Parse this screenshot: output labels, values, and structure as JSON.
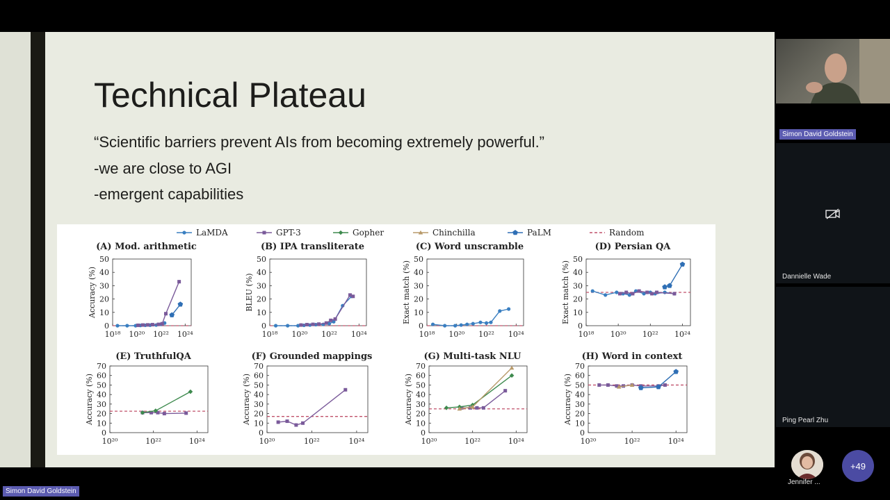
{
  "slide": {
    "title": "Technical Plateau",
    "bullets": [
      "“Scientific barriers prevent AIs from becoming extremely powerful.”",
      "-we are close to AGI",
      "-emergent capabilities"
    ]
  },
  "chart_data": {
    "type": "line",
    "legend": [
      {
        "name": "LaMDA",
        "color": "#3a7fc1",
        "marker": "circle"
      },
      {
        "name": "GPT-3",
        "color": "#7a5a9a",
        "marker": "square"
      },
      {
        "name": "Gopher",
        "color": "#3e8a4e",
        "marker": "diamond"
      },
      {
        "name": "Chinchilla",
        "color": "#b89a6a",
        "marker": "triangle"
      },
      {
        "name": "PaLM",
        "color": "#2f6fb5",
        "marker": "pentagon"
      },
      {
        "name": "Random",
        "color": "#c0506a",
        "marker": "dashed"
      }
    ],
    "panels": [
      {
        "title": "(A) Mod. arithmetic",
        "ylabel": "Accuracy (%)",
        "ylim": [
          0,
          50
        ],
        "yticks": [
          "0",
          "10",
          "20",
          "30",
          "40",
          "50"
        ],
        "xticks": [
          "10¹⁸",
          "10²⁰",
          "10²²",
          "10²⁴"
        ],
        "xlim": [
          18,
          24.5
        ],
        "random": 0,
        "series": [
          {
            "name": "LaMDA",
            "points": [
              [
                18.4,
                0
              ],
              [
                19.2,
                0
              ],
              [
                19.9,
                0
              ],
              [
                20.3,
                0.2
              ],
              [
                20.7,
                0.3
              ],
              [
                21.1,
                0.4
              ],
              [
                21.6,
                0.5
              ],
              [
                22.0,
                1
              ],
              [
                22.3,
                2
              ]
            ]
          },
          {
            "name": "GPT-3",
            "points": [
              [
                20.1,
                0.3
              ],
              [
                20.5,
                0.5
              ],
              [
                20.9,
                0.6
              ],
              [
                21.3,
                0.8
              ],
              [
                21.8,
                1
              ],
              [
                22.1,
                1.5
              ],
              [
                22.4,
                9
              ],
              [
                23.5,
                33
              ]
            ]
          },
          {
            "name": "PaLM",
            "points": [
              [
                22.9,
                8
              ],
              [
                23.6,
                16
              ]
            ]
          }
        ]
      },
      {
        "title": "(B) IPA transliterate",
        "ylabel": "BLEU (%)",
        "ylim": [
          0,
          50
        ],
        "yticks": [
          "0",
          "10",
          "20",
          "30",
          "40",
          "50"
        ],
        "xticks": [
          "10¹⁸",
          "10²⁰",
          "10²²",
          "10²⁴"
        ],
        "xlim": [
          18,
          24.5
        ],
        "random": 0,
        "series": [
          {
            "name": "LaMDA",
            "points": [
              [
                18.4,
                0
              ],
              [
                19.2,
                0
              ],
              [
                19.9,
                0
              ],
              [
                20.3,
                0.3
              ],
              [
                20.7,
                0.5
              ],
              [
                21.1,
                0.8
              ],
              [
                21.6,
                1
              ],
              [
                22.0,
                1.5
              ],
              [
                22.3,
                3
              ],
              [
                22.9,
                15
              ],
              [
                23.5,
                22
              ]
            ]
          },
          {
            "name": "GPT-3",
            "points": [
              [
                20.1,
                0.5
              ],
              [
                20.5,
                0.8
              ],
              [
                20.9,
                1
              ],
              [
                21.3,
                1.2
              ],
              [
                21.8,
                2
              ],
              [
                22.1,
                4
              ],
              [
                22.4,
                5
              ],
              [
                23.4,
                23
              ],
              [
                23.6,
                22
              ]
            ]
          }
        ]
      },
      {
        "title": "(C) Word unscramble",
        "ylabel": "Exact match (%)",
        "ylim": [
          0,
          50
        ],
        "yticks": [
          "0",
          "10",
          "20",
          "30",
          "40",
          "50"
        ],
        "xticks": [
          "10¹⁸",
          "10²⁰",
          "10²²",
          "10²⁴"
        ],
        "xlim": [
          18,
          24.5
        ],
        "random": 0,
        "series": [
          {
            "name": "LaMDA",
            "points": [
              [
                18.4,
                1
              ],
              [
                19.2,
                0
              ],
              [
                19.9,
                0
              ],
              [
                20.3,
                0.5
              ],
              [
                20.7,
                1
              ],
              [
                21.1,
                1.5
              ],
              [
                21.6,
                2.5
              ],
              [
                22.0,
                2
              ],
              [
                22.3,
                2.5
              ],
              [
                22.9,
                11
              ],
              [
                23.5,
                12.5
              ]
            ]
          }
        ]
      },
      {
        "title": "(D) Persian QA",
        "ylabel": "Exact match (%)",
        "ylim": [
          0,
          50
        ],
        "yticks": [
          "0",
          "10",
          "20",
          "30",
          "40",
          "50"
        ],
        "xticks": [
          "10¹⁸",
          "10²⁰",
          "10²²",
          "10²⁴"
        ],
        "xlim": [
          18,
          24.5
        ],
        "random": 25,
        "series": [
          {
            "name": "LaMDA",
            "points": [
              [
                18.4,
                26
              ],
              [
                19.2,
                23
              ],
              [
                19.9,
                25
              ],
              [
                20.3,
                24
              ],
              [
                20.7,
                23
              ],
              [
                21.1,
                26
              ],
              [
                21.6,
                24
              ],
              [
                22.0,
                25
              ],
              [
                22.3,
                24
              ],
              [
                22.9,
                25
              ],
              [
                23.5,
                24
              ]
            ]
          },
          {
            "name": "GPT-3",
            "points": [
              [
                20.1,
                24
              ],
              [
                20.5,
                25
              ],
              [
                20.9,
                24
              ],
              [
                21.3,
                26
              ],
              [
                21.8,
                25
              ],
              [
                22.1,
                24
              ],
              [
                22.4,
                25
              ],
              [
                23.5,
                24
              ]
            ]
          },
          {
            "name": "PaLM",
            "points": [
              [
                22.9,
                29
              ],
              [
                23.2,
                30
              ],
              [
                24.0,
                46
              ]
            ]
          }
        ]
      },
      {
        "title": "(E) TruthfulQA",
        "ylabel": "Accuracy (%)",
        "ylim": [
          0,
          70
        ],
        "yticks": [
          "0",
          "10",
          "20",
          "30",
          "40",
          "50",
          "60",
          "70"
        ],
        "xticks": [
          "10²⁰",
          "10²²",
          "10²⁴"
        ],
        "xlim": [
          20,
          24.5
        ],
        "random": 22.5,
        "series": [
          {
            "name": "GPT-3",
            "points": [
              [
                21.5,
                21
              ],
              [
                21.9,
                21
              ],
              [
                22.2,
                21
              ],
              [
                22.5,
                20
              ],
              [
                23.5,
                20.5
              ]
            ]
          },
          {
            "name": "Gopher",
            "points": [
              [
                21.5,
                21
              ],
              [
                22.1,
                23
              ],
              [
                23.7,
                43
              ]
            ]
          }
        ]
      },
      {
        "title": "(F) Grounded mappings",
        "ylabel": "Accuracy (%)",
        "ylim": [
          0,
          70
        ],
        "yticks": [
          "0",
          "10",
          "20",
          "30",
          "40",
          "50",
          "60",
          "70"
        ],
        "xticks": [
          "10²⁰",
          "10²²",
          "10²⁴"
        ],
        "xlim": [
          20,
          24.5
        ],
        "random": 17,
        "series": [
          {
            "name": "GPT-3",
            "points": [
              [
                20.5,
                11
              ],
              [
                20.9,
                12
              ],
              [
                21.3,
                8
              ],
              [
                21.6,
                10
              ],
              [
                23.5,
                45
              ]
            ]
          }
        ]
      },
      {
        "title": "(G) Multi-task NLU",
        "ylabel": "Accuracy (%)",
        "ylim": [
          0,
          70
        ],
        "yticks": [
          "0",
          "10",
          "20",
          "30",
          "40",
          "50",
          "60",
          "70"
        ],
        "xticks": [
          "10²⁰",
          "10²²",
          "10²⁴"
        ],
        "xlim": [
          20,
          24.5
        ],
        "random": 25,
        "series": [
          {
            "name": "GPT-3",
            "points": [
              [
                21.5,
                26
              ],
              [
                21.9,
                26
              ],
              [
                22.2,
                26
              ],
              [
                22.5,
                26
              ],
              [
                23.5,
                44
              ]
            ]
          },
          {
            "name": "Gopher",
            "points": [
              [
                20.8,
                26
              ],
              [
                21.4,
                27
              ],
              [
                22.0,
                29
              ],
              [
                23.8,
                60
              ]
            ]
          },
          {
            "name": "Chinchilla",
            "points": [
              [
                21.4,
                25
              ],
              [
                22.0,
                27
              ],
              [
                23.8,
                68
              ]
            ]
          }
        ]
      },
      {
        "title": "(H) Word in context",
        "ylabel": "Accuracy (%)",
        "ylim": [
          0,
          70
        ],
        "yticks": [
          "0",
          "10",
          "20",
          "30",
          "40",
          "50",
          "60",
          "70"
        ],
        "xticks": [
          "10²⁰",
          "10²²",
          "10²⁴"
        ],
        "xlim": [
          20,
          24.5
        ],
        "random": 50,
        "series": [
          {
            "name": "GPT-3",
            "points": [
              [
                20.5,
                50
              ],
              [
                20.9,
                50
              ],
              [
                21.3,
                49
              ],
              [
                21.6,
                49
              ],
              [
                22.0,
                50
              ],
              [
                22.4,
                49
              ],
              [
                23.2,
                49
              ],
              [
                23.5,
                50
              ]
            ]
          },
          {
            "name": "Chinchilla",
            "points": [
              [
                21.4,
                48
              ],
              [
                22.0,
                50
              ]
            ]
          },
          {
            "name": "PaLM",
            "points": [
              [
                22.4,
                47
              ],
              [
                23.2,
                48
              ],
              [
                24.0,
                64
              ]
            ]
          }
        ]
      }
    ]
  },
  "participants": {
    "speaker": "Simon David Goldstein",
    "tiles": [
      "Dannielle Wade",
      "Ping Pearl Zhu"
    ],
    "avatar_name": "Jennifer ...",
    "more_count": "+49",
    "camera_off_icon": "camera-off-icon"
  },
  "bottom_bar": {
    "presenter_label": "Simon David Goldstein"
  }
}
